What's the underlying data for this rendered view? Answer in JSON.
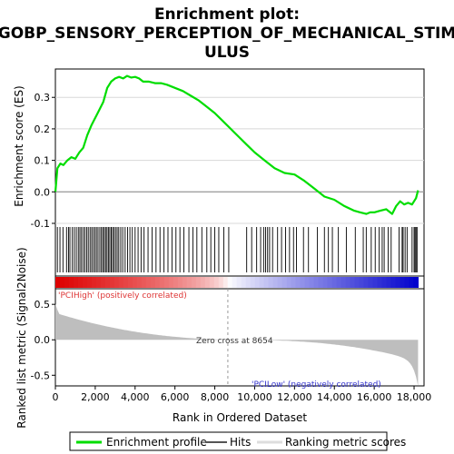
{
  "chart_data": {
    "type": "line",
    "title_lines": [
      "Enrichment plot:",
      "GOBP_SENSORY_PERCEPTION_OF_MECHANICAL_STIM",
      "ULUS"
    ],
    "ylabel_top": "Enrichment score (ES)",
    "ylabel_bottom": "Ranked list metric (Signal2Noise)",
    "xlabel": "Rank in Ordered Dataset",
    "xlim": [
      0,
      18500
    ],
    "ylim_es": [
      -0.1,
      0.39
    ],
    "ylim_metric": [
      -0.65,
      0.72
    ],
    "x_ticks": [
      0,
      2000,
      4000,
      6000,
      8000,
      10000,
      12000,
      14000,
      16000,
      18000
    ],
    "x_tick_labels": [
      "0",
      "2,000",
      "4,000",
      "6,000",
      "8,000",
      "10,000",
      "12,000",
      "14,000",
      "16,000",
      "18,000"
    ],
    "es_ticks": [
      -0.1,
      0.0,
      0.1,
      0.2,
      0.3
    ],
    "es_tick_labels": [
      "-0.1",
      "0.0",
      "0.1",
      "0.2",
      "0.3"
    ],
    "metric_ticks": [
      -0.5,
      0.0,
      0.5
    ],
    "metric_tick_labels": [
      "-0.5",
      "0.0",
      "0.5"
    ],
    "series": [
      {
        "name": "Enrichment profile",
        "color": "#00dd00",
        "x": [
          0,
          100,
          250,
          400,
          600,
          800,
          1000,
          1200,
          1400,
          1600,
          1800,
          2000,
          2200,
          2400,
          2600,
          2800,
          3000,
          3200,
          3400,
          3600,
          3800,
          4000,
          4200,
          4400,
          4700,
          5000,
          5300,
          5600,
          6000,
          6400,
          6800,
          7200,
          7600,
          8000,
          8400,
          8800,
          9200,
          9600,
          10000,
          10500,
          11000,
          11500,
          12000,
          12500,
          13000,
          13500,
          14000,
          14500,
          15000,
          15300,
          15600,
          15800,
          16000,
          16300,
          16600,
          16900,
          17100,
          17300,
          17500,
          17700,
          17900,
          18100,
          18200
        ],
        "y": [
          0.0,
          0.075,
          0.09,
          0.085,
          0.1,
          0.11,
          0.105,
          0.125,
          0.14,
          0.18,
          0.21,
          0.235,
          0.26,
          0.285,
          0.33,
          0.35,
          0.36,
          0.365,
          0.36,
          0.368,
          0.363,
          0.365,
          0.36,
          0.35,
          0.35,
          0.345,
          0.345,
          0.34,
          0.33,
          0.32,
          0.305,
          0.29,
          0.27,
          0.25,
          0.225,
          0.2,
          0.175,
          0.15,
          0.125,
          0.1,
          0.075,
          0.06,
          0.055,
          0.035,
          0.01,
          -0.015,
          -0.025,
          -0.045,
          -0.06,
          -0.065,
          -0.07,
          -0.065,
          -0.065,
          -0.06,
          -0.055,
          -0.07,
          -0.045,
          -0.03,
          -0.04,
          -0.035,
          -0.04,
          -0.02,
          0.005
        ]
      }
    ],
    "hits": [
      100,
      230,
      380,
      560,
      660,
      730,
      850,
      950,
      1050,
      1150,
      1230,
      1310,
      1400,
      1480,
      1570,
      1650,
      1740,
      1820,
      1900,
      1980,
      2060,
      2140,
      2230,
      2310,
      2380,
      2450,
      2520,
      2590,
      2660,
      2730,
      2800,
      2870,
      2940,
      3020,
      3100,
      3180,
      3280,
      3380,
      3500,
      3620,
      3740,
      3860,
      4000,
      4150,
      4300,
      4450,
      4650,
      4850,
      5050,
      5250,
      5450,
      5650,
      5850,
      6050,
      6250,
      6450,
      6700,
      6900,
      7100,
      7350,
      7600,
      7800,
      8000,
      8200,
      8450,
      8700,
      9600,
      9850,
      10100,
      10300,
      10450,
      10550,
      10650,
      10750,
      10900,
      11150,
      11350,
      11550,
      11750,
      11950,
      12100,
      12450,
      12700,
      13150,
      13500,
      13700,
      13900,
      14200,
      14600,
      15050,
      15450,
      15600,
      15850,
      16050,
      16250,
      16400,
      16500,
      16700,
      16850,
      17250,
      17400,
      17450,
      17550,
      17650,
      17900,
      18000,
      18050,
      18100,
      18150
    ],
    "zero_cross_x": 8654,
    "annotations": {
      "zero_cross": "Zero cross at 8654",
      "pos_label": "'PCIHigh' (positively correlated)",
      "neg_label": "'PCILow' (negatively correlated)"
    },
    "colors": {
      "es_line": "#00dd00",
      "hit": "#000000",
      "metric_fill": "#bebebe",
      "pos_text": "#dd3333",
      "neg_text": "#3333cc",
      "bar_red": "#dd0000",
      "bar_blue": "#0000cc"
    },
    "legend": {
      "position": "bottom",
      "items": [
        {
          "label": "Enrichment profile",
          "swatch": "#00dd00"
        },
        {
          "label": "Hits",
          "swatch": "#555555"
        },
        {
          "label": "Ranking metric scores",
          "swatch": "#dddddd"
        }
      ]
    }
  }
}
